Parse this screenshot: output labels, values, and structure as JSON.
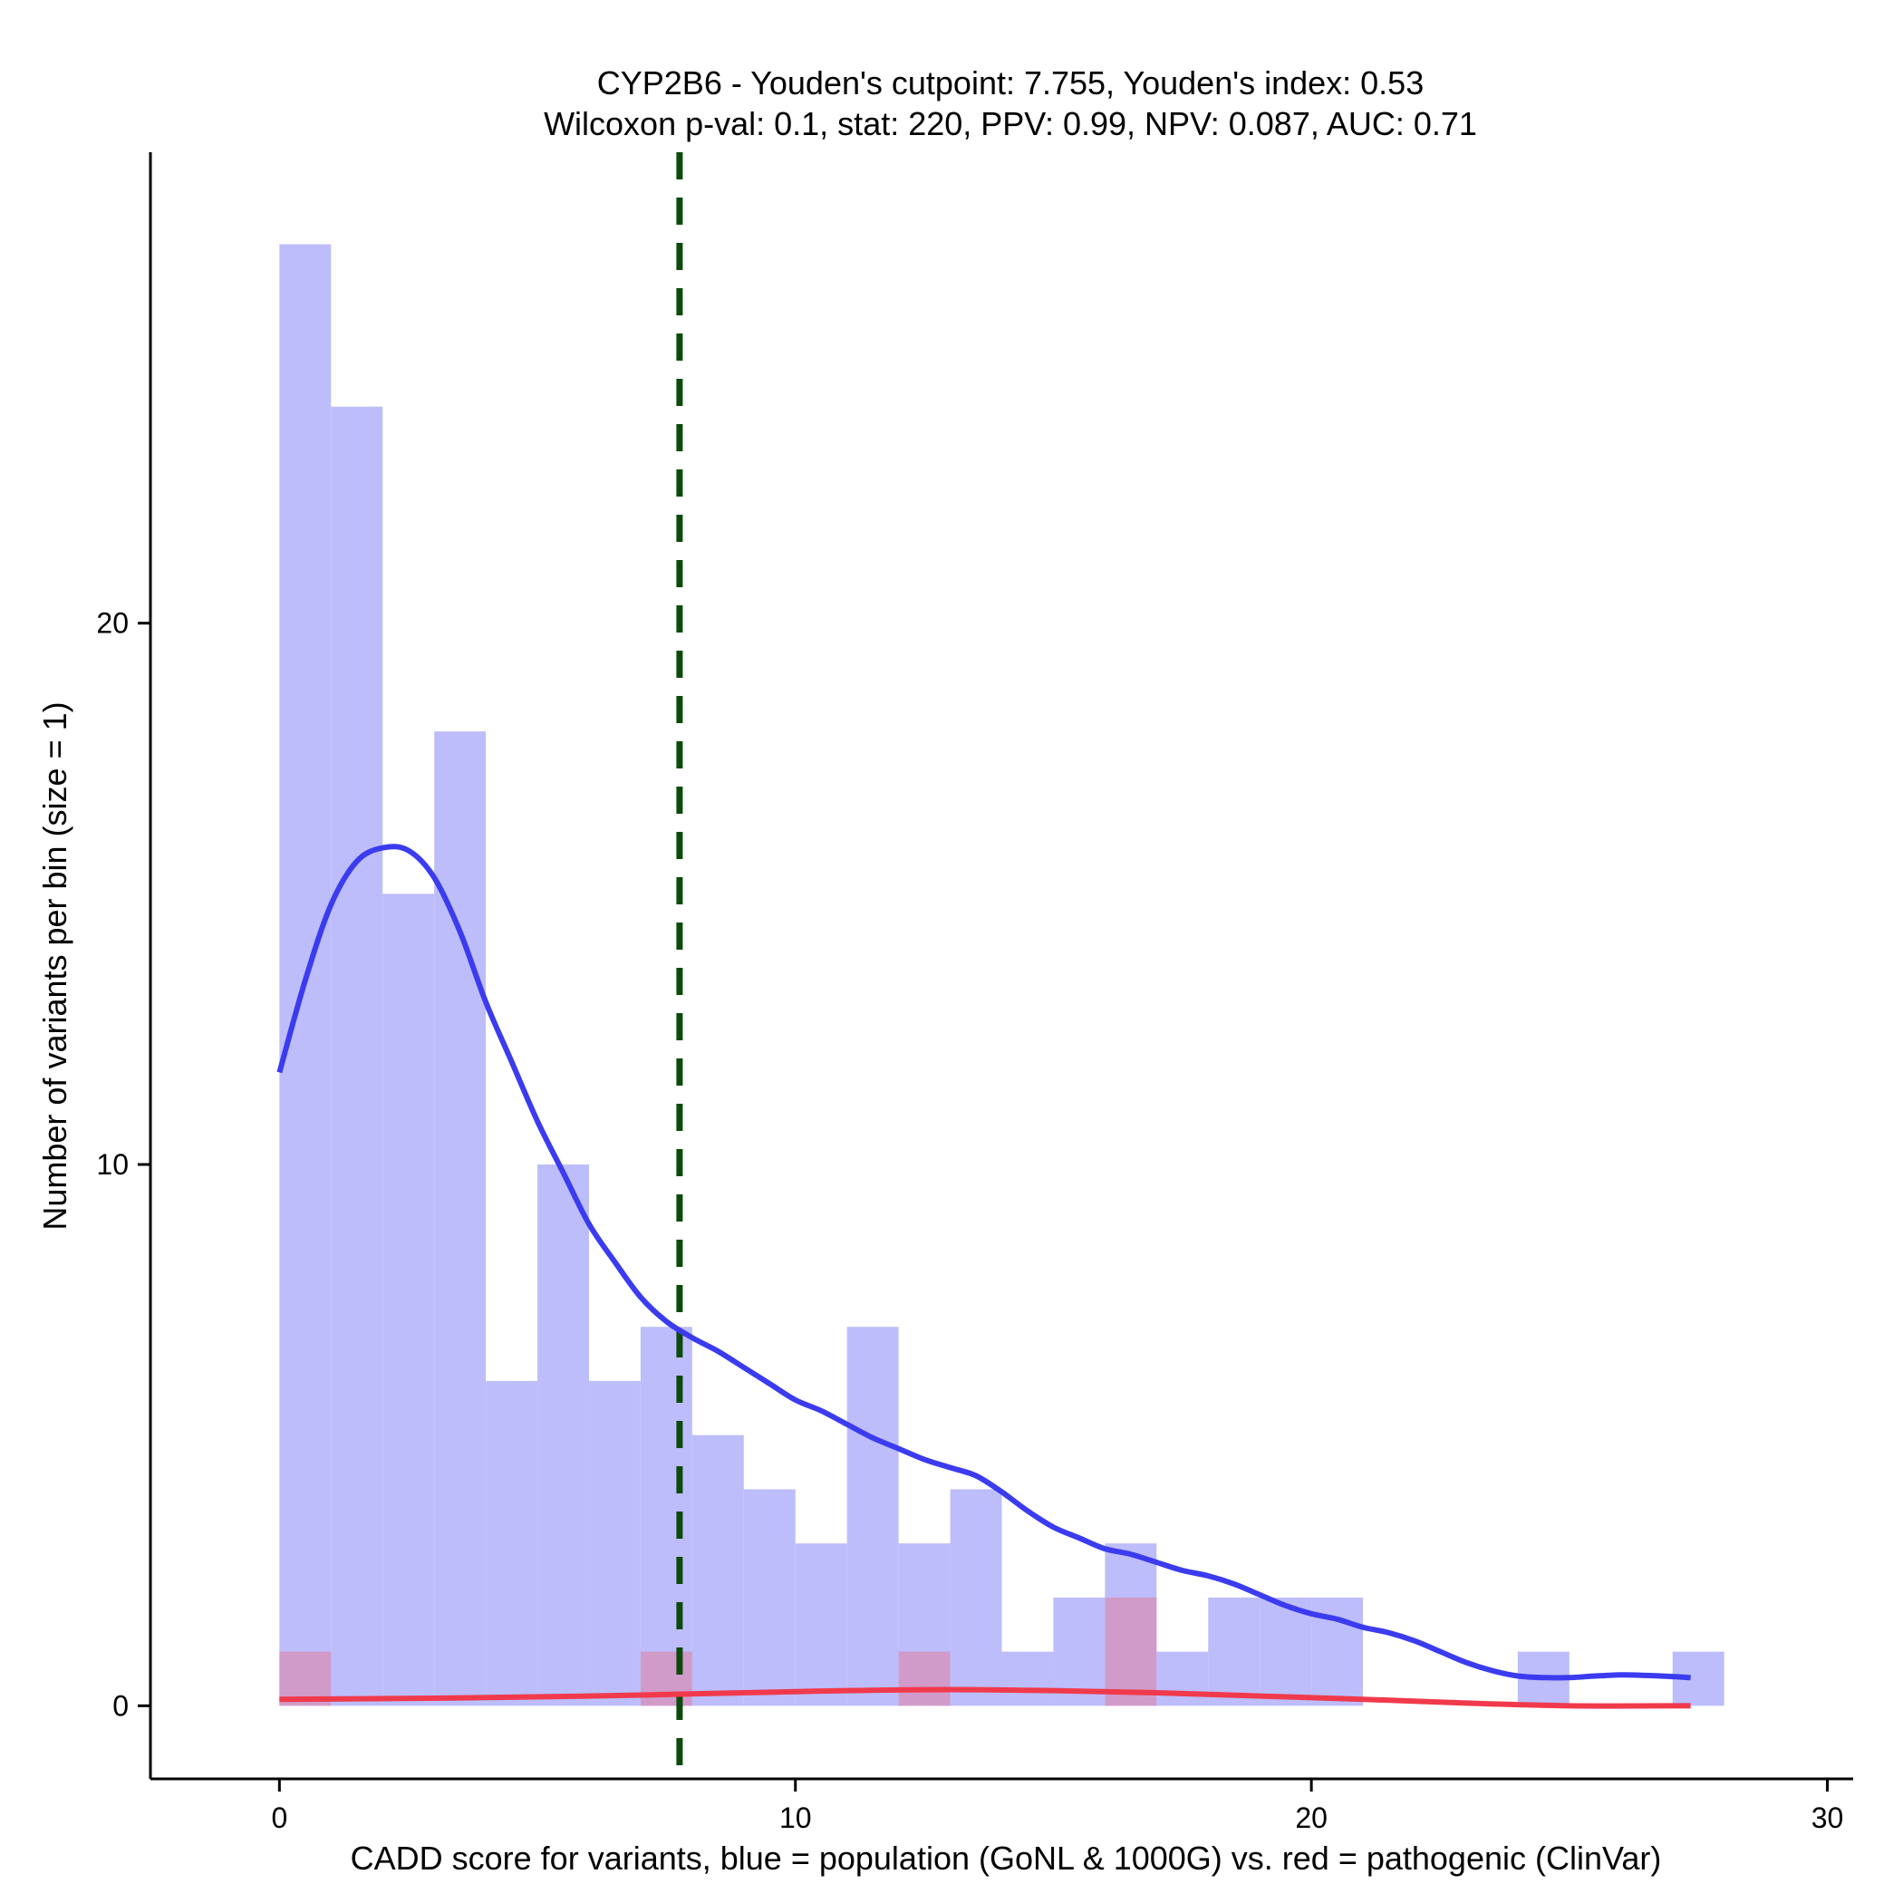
{
  "chart_data": {
    "type": "bar",
    "title": "CYP2B6 - Youden's cutpoint: 7.755, Youden's index: 0.53",
    "subtitle": "Wilcoxon p-val: 0.1, stat: 220, PPV: 0.99, NPV: 0.087, AUC: 0.71",
    "xlabel": "CADD score for variants, blue = population (GoNL & 1000G) vs. red = pathogenic (ClinVar)",
    "ylabel": "Number of variants per bin (size = 1)",
    "xlim": [
      -2.5,
      30.5
    ],
    "ylim": [
      -1.35,
      28.7
    ],
    "xticks": [
      0,
      10,
      20,
      30
    ],
    "yticks": [
      0,
      10,
      20
    ],
    "grid": false,
    "bin_size": 1,
    "cutpoint": 7.755,
    "colors": {
      "population_bar": "#bdbdfb",
      "pathogenic_bar": "#d595c0",
      "population_line": "#3b3bef",
      "pathogenic_line": "#f03a4c",
      "cutpoint_line": "#0b4a0b"
    },
    "histograms": [
      {
        "group": "population",
        "bins": [
          {
            "x0": 0,
            "count": 27
          },
          {
            "x0": 1,
            "count": 24
          },
          {
            "x0": 2,
            "count": 15
          },
          {
            "x0": 3,
            "count": 18
          },
          {
            "x0": 4,
            "count": 6
          },
          {
            "x0": 5,
            "count": 10
          },
          {
            "x0": 6,
            "count": 6
          },
          {
            "x0": 7,
            "count": 7
          },
          {
            "x0": 8,
            "count": 5
          },
          {
            "x0": 9,
            "count": 4
          },
          {
            "x0": 10,
            "count": 3
          },
          {
            "x0": 11,
            "count": 7
          },
          {
            "x0": 12,
            "count": 3
          },
          {
            "x0": 13,
            "count": 4
          },
          {
            "x0": 14,
            "count": 1
          },
          {
            "x0": 15,
            "count": 2
          },
          {
            "x0": 16,
            "count": 3
          },
          {
            "x0": 17,
            "count": 1
          },
          {
            "x0": 18,
            "count": 2
          },
          {
            "x0": 19,
            "count": 2
          },
          {
            "x0": 20,
            "count": 2
          },
          {
            "x0": 24,
            "count": 1
          },
          {
            "x0": 27,
            "count": 1
          }
        ]
      },
      {
        "group": "pathogenic",
        "bins": [
          {
            "x0": 0,
            "count": 1
          },
          {
            "x0": 7,
            "count": 1
          },
          {
            "x0": 12,
            "count": 1
          },
          {
            "x0": 16,
            "count": 2
          }
        ]
      }
    ],
    "density_lines": [
      {
        "group": "population",
        "points": [
          [
            0,
            11.7
          ],
          [
            0.5,
            13.4
          ],
          [
            1,
            14.8
          ],
          [
            1.5,
            15.6
          ],
          [
            2,
            15.85
          ],
          [
            2.5,
            15.8
          ],
          [
            3,
            15.3
          ],
          [
            3.5,
            14.3
          ],
          [
            4,
            13.0
          ],
          [
            4.5,
            11.9
          ],
          [
            5,
            10.8
          ],
          [
            5.5,
            9.85
          ],
          [
            6,
            8.9
          ],
          [
            6.5,
            8.2
          ],
          [
            7,
            7.55
          ],
          [
            7.5,
            7.1
          ],
          [
            8,
            6.8
          ],
          [
            8.5,
            6.55
          ],
          [
            9,
            6.25
          ],
          [
            9.5,
            5.95
          ],
          [
            10,
            5.65
          ],
          [
            10.5,
            5.45
          ],
          [
            11,
            5.2
          ],
          [
            11.5,
            4.95
          ],
          [
            12,
            4.75
          ],
          [
            12.5,
            4.55
          ],
          [
            13,
            4.4
          ],
          [
            13.5,
            4.25
          ],
          [
            14,
            3.95
          ],
          [
            14.5,
            3.6
          ],
          [
            15,
            3.3
          ],
          [
            15.5,
            3.1
          ],
          [
            16,
            2.9
          ],
          [
            16.5,
            2.8
          ],
          [
            17,
            2.65
          ],
          [
            17.5,
            2.5
          ],
          [
            18,
            2.4
          ],
          [
            18.5,
            2.25
          ],
          [
            19,
            2.05
          ],
          [
            19.5,
            1.85
          ],
          [
            20,
            1.7
          ],
          [
            20.5,
            1.6
          ],
          [
            21,
            1.45
          ],
          [
            21.5,
            1.35
          ],
          [
            22,
            1.2
          ],
          [
            22.5,
            1.0
          ],
          [
            23,
            0.8
          ],
          [
            23.5,
            0.65
          ],
          [
            24,
            0.55
          ],
          [
            24.5,
            0.52
          ],
          [
            25,
            0.52
          ],
          [
            25.5,
            0.55
          ],
          [
            26,
            0.57
          ],
          [
            26.5,
            0.56
          ],
          [
            27,
            0.54
          ],
          [
            27.35,
            0.52
          ]
        ]
      },
      {
        "group": "pathogenic",
        "points": [
          [
            0,
            0.12
          ],
          [
            3,
            0.14
          ],
          [
            6,
            0.18
          ],
          [
            9,
            0.24
          ],
          [
            11,
            0.28
          ],
          [
            13,
            0.3
          ],
          [
            15,
            0.28
          ],
          [
            17,
            0.24
          ],
          [
            19,
            0.18
          ],
          [
            21,
            0.12
          ],
          [
            23,
            0.05
          ],
          [
            25,
            0.0
          ],
          [
            27.35,
            0.0
          ]
        ]
      }
    ]
  }
}
